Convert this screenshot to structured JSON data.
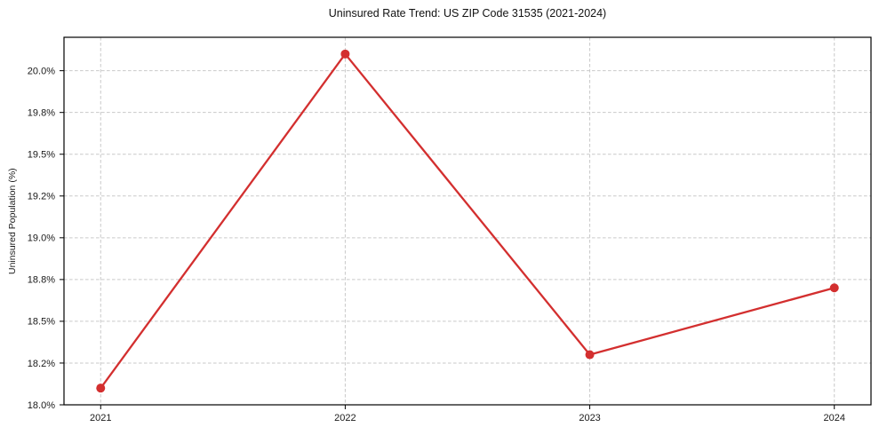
{
  "chart_data": {
    "type": "line",
    "title": "Uninsured Rate Trend: US ZIP Code 31535 (2021-2024)",
    "xlabel": "",
    "ylabel": "Uninsured Population (%)",
    "categories": [
      "2021",
      "2022",
      "2023",
      "2024"
    ],
    "x": [
      2021,
      2022,
      2023,
      2024
    ],
    "values": [
      18.1,
      20.1,
      18.3,
      18.7
    ],
    "xlim": [
      2020.85,
      2024.15
    ],
    "ylim": [
      18.0,
      20.2
    ],
    "yticks": {
      "values": [
        18.0,
        18.25,
        18.5,
        18.75,
        19.0,
        19.25,
        19.5,
        19.75,
        20.0
      ],
      "labels": [
        "18.0%",
        "18.2%",
        "18.5%",
        "18.8%",
        "19.0%",
        "19.2%",
        "19.5%",
        "19.8%",
        "20.0%"
      ]
    },
    "grid": true,
    "legend": false,
    "style": {
      "line_color": "#d32f2f",
      "marker": "circle",
      "marker_radius": 5,
      "grid_color": "#c9c9c9",
      "grid_linestyle": "dashed",
      "spine_color": "#000000",
      "tick_color": "#000000",
      "text_color": "#191919",
      "background": "#ffffff"
    }
  }
}
